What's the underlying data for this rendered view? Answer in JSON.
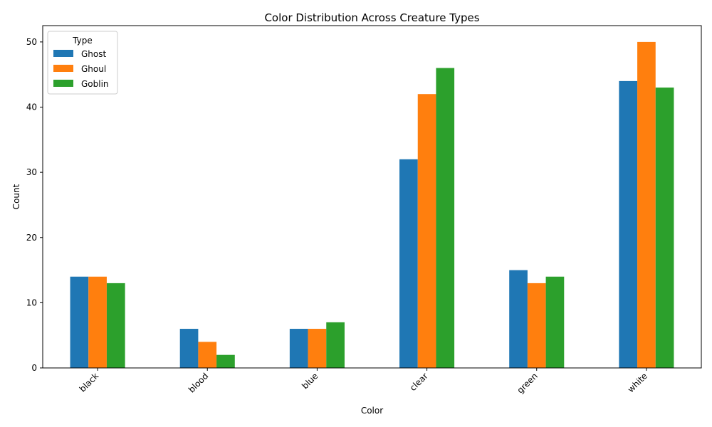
{
  "chart_data": {
    "type": "bar",
    "title": "Color Distribution Across Creature Types",
    "xlabel": "Color",
    "ylabel": "Count",
    "categories": [
      "black",
      "blood",
      "blue",
      "clear",
      "green",
      "white"
    ],
    "series": [
      {
        "name": "Ghost",
        "color": "#1f77b4",
        "values": [
          14,
          6,
          6,
          32,
          15,
          44
        ]
      },
      {
        "name": "Ghoul",
        "color": "#ff7f0e",
        "values": [
          14,
          4,
          6,
          42,
          13,
          50
        ]
      },
      {
        "name": "Goblin",
        "color": "#2ca02c",
        "values": [
          13,
          2,
          7,
          46,
          14,
          43
        ]
      }
    ],
    "ylim": [
      0,
      52.5
    ],
    "yticks": [
      0,
      10,
      20,
      30,
      40,
      50
    ],
    "legend": {
      "title": "Type",
      "position": "top-left"
    },
    "grid": false
  }
}
